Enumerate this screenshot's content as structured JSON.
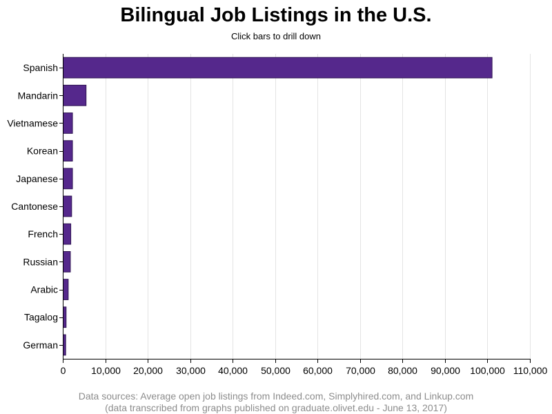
{
  "chart_data": {
    "type": "bar",
    "orientation": "horizontal",
    "title": "Bilingual Job Listings in the U.S.",
    "subtitle": "Click bars to drill down",
    "categories": [
      "Spanish",
      "Mandarin",
      "Vietnamese",
      "Korean",
      "Japanese",
      "Cantonese",
      "French",
      "Russian",
      "Arabic",
      "Tagalog",
      "German"
    ],
    "values": [
      101000,
      5400,
      2200,
      2200,
      2200,
      2000,
      1800,
      1700,
      1200,
      700,
      600
    ],
    "xlim": [
      0,
      110000
    ],
    "xticks": [
      0,
      10000,
      20000,
      30000,
      40000,
      50000,
      60000,
      70000,
      80000,
      90000,
      100000,
      110000
    ],
    "xtick_labels": [
      "0",
      "10,000",
      "20,000",
      "30,000",
      "40,000",
      "50,000",
      "60,000",
      "70,000",
      "80,000",
      "90,000",
      "100,000",
      "110,000"
    ],
    "grid": true,
    "bar_color": "#55288c",
    "bar_edge_color": "#2e1452",
    "footnote": [
      "Data sources: Average open job listings from Indeed.com, Simplyhired.com, and Linkup.com",
      "(data transcribed from graphs published on graduate.olivet.edu - June 13, 2017)"
    ]
  }
}
